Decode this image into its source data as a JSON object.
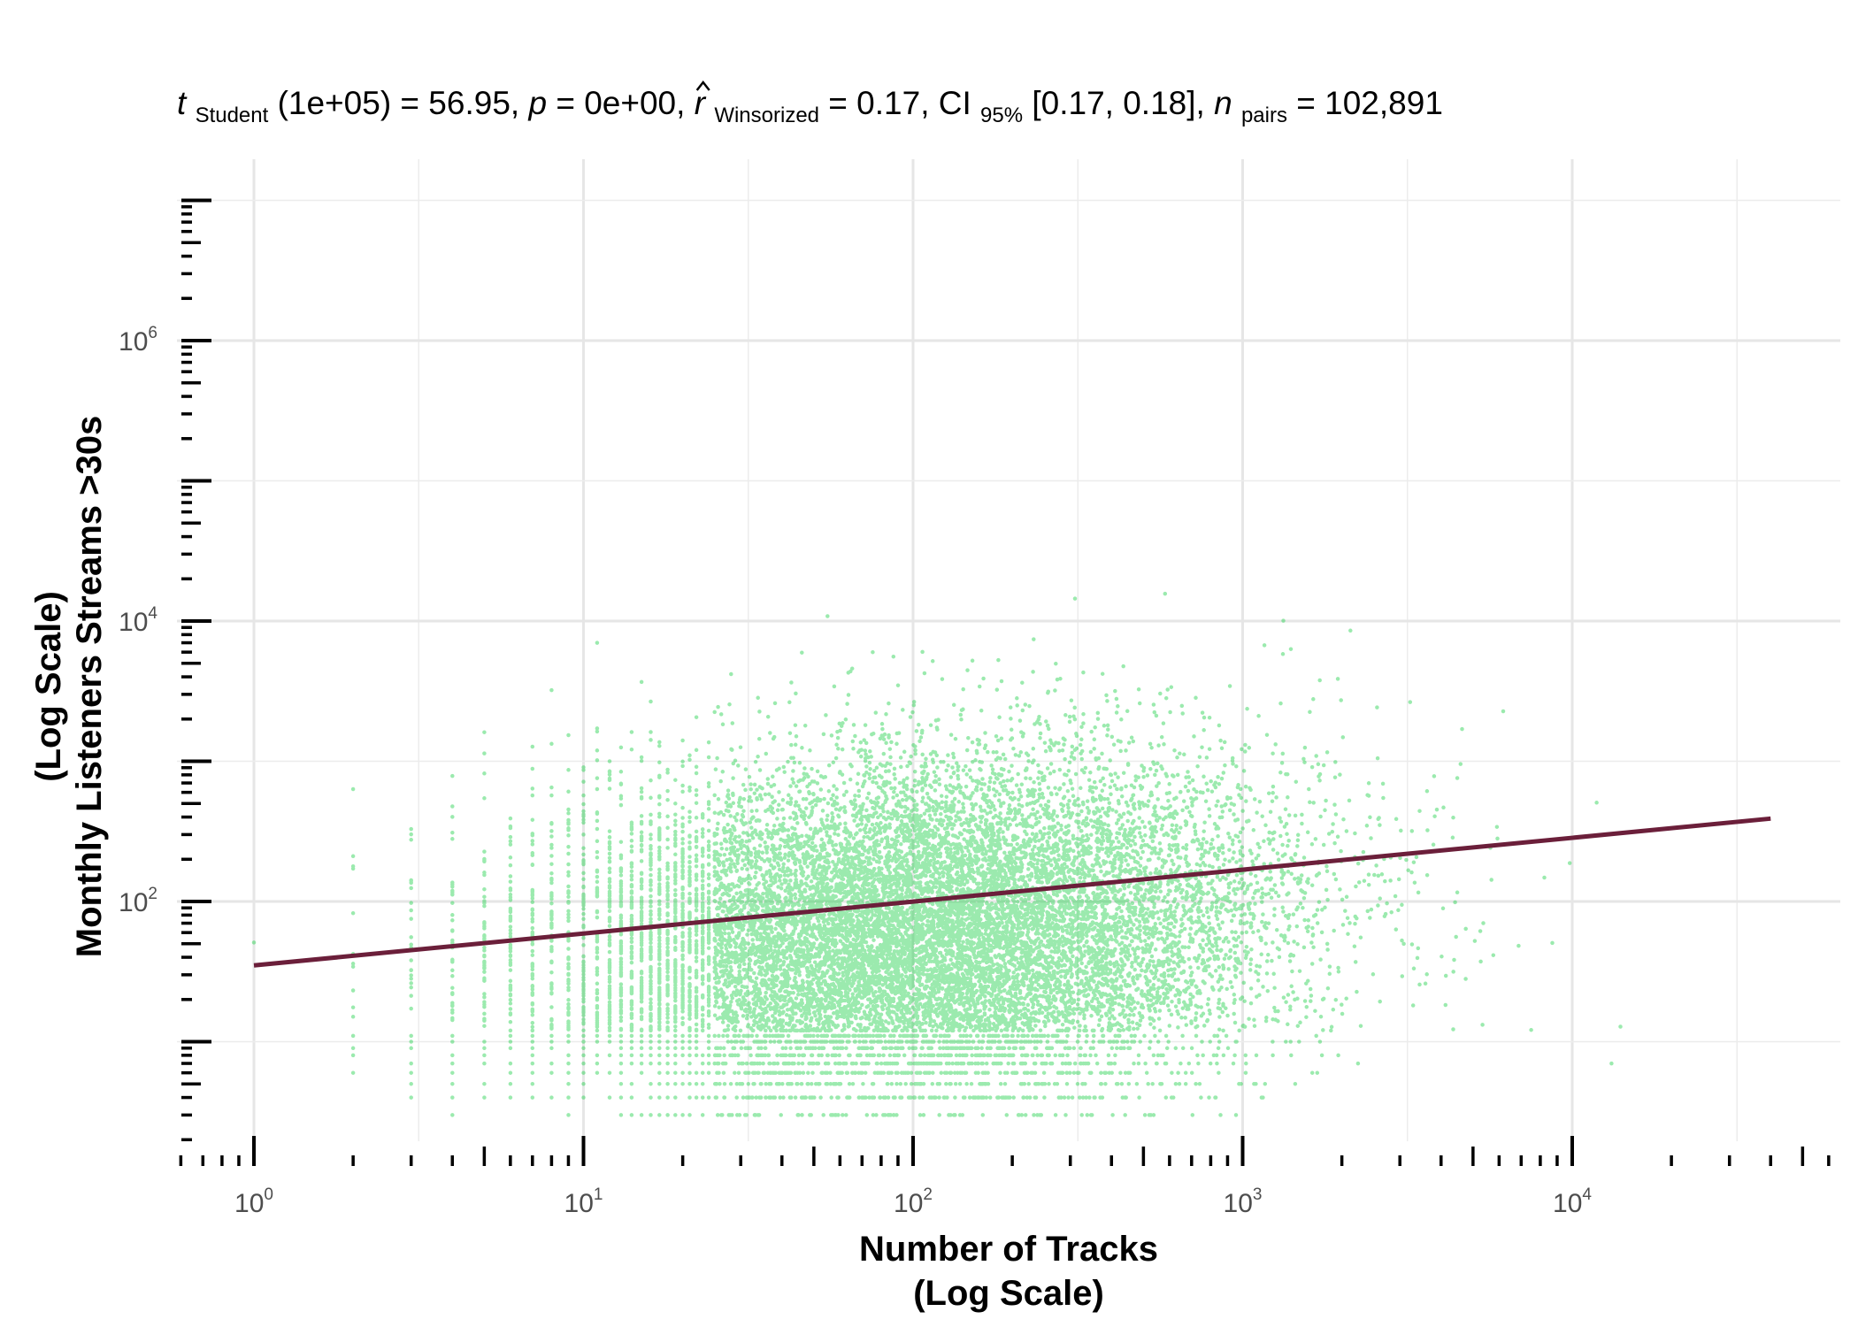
{
  "chart_data": {
    "type": "scatter",
    "subtitle": {
      "t_symbol": "t",
      "t_sub": "Student",
      "t_text": "(1e+05) = 56.95, ",
      "p_symbol": "p",
      "p_text": " = 0e+00, ",
      "r_symbol": "r",
      "r_sub": "Winsorized",
      "r_text": " = 0.17, CI",
      "ci_sub": "95%",
      "ci_text": " [0.17, 0.18], ",
      "n_symbol": "n",
      "n_sub": "pairs",
      "n_text": " = 102,891"
    },
    "xlabel_line1": "Number of Tracks",
    "xlabel_line2": "(Log Scale)",
    "ylabel_line1": "(Log Scale)",
    "ylabel_line2": "Monthly Listeners Streams >30s",
    "x_scale": "log10",
    "y_scale": "log10",
    "xlim": [
      0.6,
      63000
    ],
    "ylim": [
      1.6,
      14000000
    ],
    "x_ticks": [
      {
        "base": "10",
        "exp": "0",
        "value": 1
      },
      {
        "base": "10",
        "exp": "1",
        "value": 10
      },
      {
        "base": "10",
        "exp": "2",
        "value": 100
      },
      {
        "base": "10",
        "exp": "3",
        "value": 1000
      },
      {
        "base": "10",
        "exp": "4",
        "value": 10000
      }
    ],
    "y_ticks": [
      {
        "base": "10",
        "exp": "2",
        "value": 100
      },
      {
        "base": "10",
        "exp": "4",
        "value": 10000
      },
      {
        "base": "10",
        "exp": "6",
        "value": 1000000
      }
    ],
    "grid": true,
    "point_color": "#22D14B",
    "line_color": "#6B1F3A",
    "regression_line": {
      "x": [
        1,
        40000
      ],
      "y": [
        35,
        390
      ]
    },
    "n_points": 102891,
    "point_cloud": {
      "x_log10_mean": 2.0,
      "x_log10_sd": 0.55,
      "y_log10_mean": 1.75,
      "y_log10_sd": 0.62,
      "x_discrete_below": 25,
      "y_discrete_below": 12
    }
  }
}
